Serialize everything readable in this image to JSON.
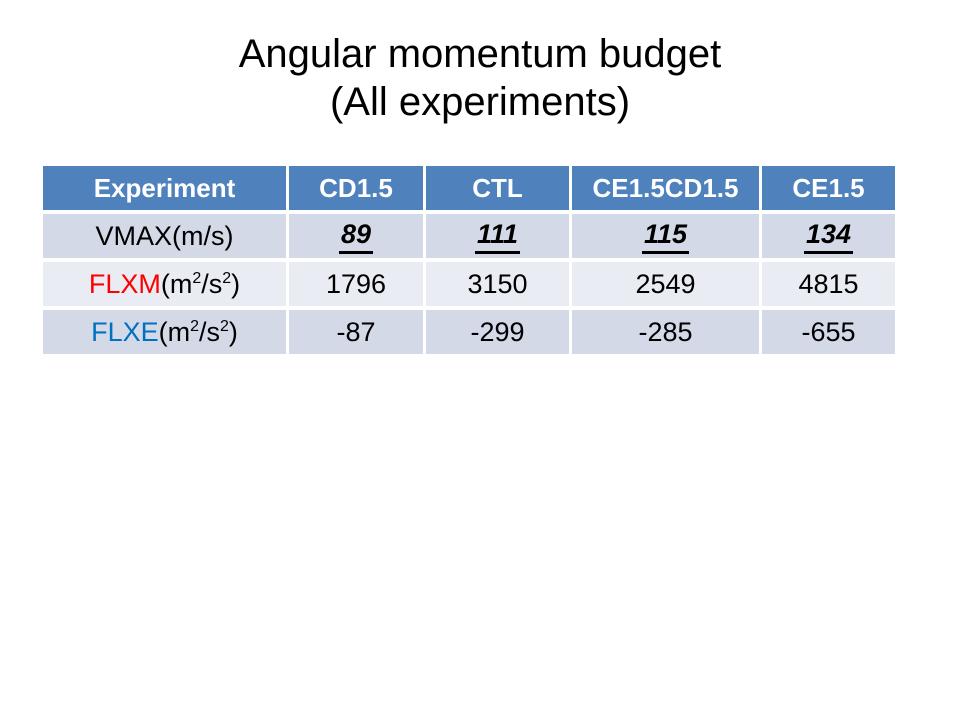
{
  "slide": {
    "title_line1": "Angular momentum budget",
    "title_line2": "(All experiments)"
  },
  "table": {
    "headers": [
      "Experiment",
      "CD1.5",
      "CTL",
      "CE1.5CD1.5",
      "CE1.5"
    ],
    "rows": [
      {
        "label": "VMAX",
        "label_color": "#000000",
        "unit_prefix": " (m/s)",
        "unit_sup1": "",
        "unit_mid": "",
        "unit_sup2": "",
        "unit_suffix": "",
        "values": [
          "89",
          "111",
          "115",
          "134"
        ]
      },
      {
        "label": "FLXM",
        "label_color": "#FF0000",
        "unit_prefix": " (m",
        "unit_sup1": "2",
        "unit_mid": "/s",
        "unit_sup2": "2",
        "unit_suffix": ")",
        "values": [
          "1796",
          "3150",
          "2549",
          "4815"
        ]
      },
      {
        "label": "FLXE",
        "label_color": "#0070C0",
        "unit_prefix": " (m",
        "unit_sup1": "2",
        "unit_mid": "/s",
        "unit_sup2": "2",
        "unit_suffix": ")",
        "values": [
          "-87",
          "-299",
          "-285",
          "-655"
        ]
      }
    ],
    "colors": {
      "header_bg": "#4F81BD",
      "header_text": "#FFFFFF",
      "band_dark": "#D3D9E7",
      "band_light": "#EAECF3"
    }
  }
}
